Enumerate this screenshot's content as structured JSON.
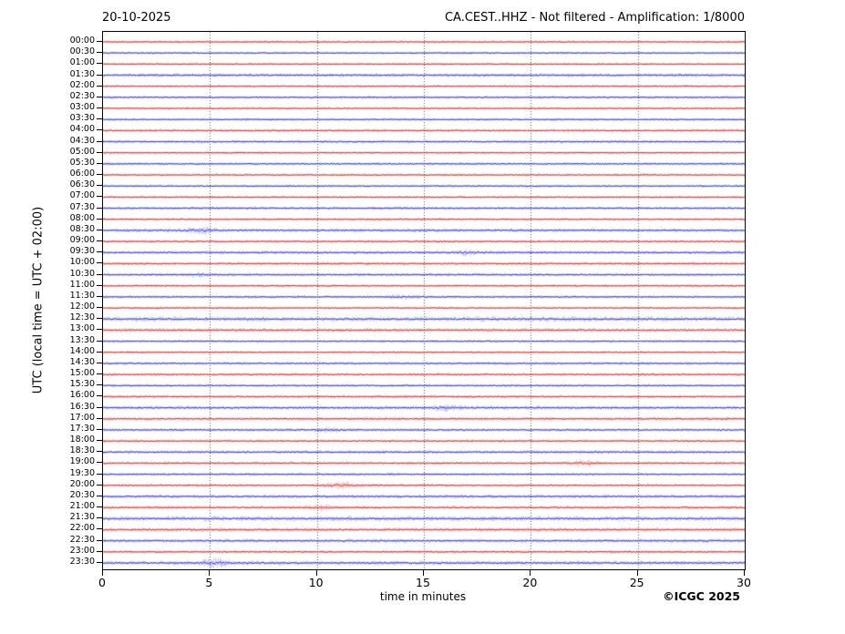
{
  "header": {
    "date_label": "20-10-2025",
    "station_label": "CA.CEST..HHZ - Not filtered - Amplification: 1/8000"
  },
  "footer": {
    "credit": "©ICGC 2025"
  },
  "chart_data": {
    "type": "line",
    "subtype": "helicorder-seismogram",
    "title_left": "20-10-2025",
    "title_right": "CA.CEST..HHZ - Not filtered - Amplification: 1/8000",
    "xlabel": "time in minutes",
    "ylabel": "UTC (local time = UTC + 02:00)",
    "xlim": [
      0,
      30
    ],
    "x_ticks": [
      0,
      5,
      10,
      15,
      20,
      25,
      30
    ],
    "grid": "vertical dotted lines at 5-minute intervals",
    "legend_position": "none",
    "trace_color_cycle": {
      "hour": "#dc2828",
      "half_hour": "#3232d2"
    },
    "grid_color": "#555555",
    "rows": [
      {
        "label": "00:00",
        "color": "red",
        "amp": 1.0,
        "bursts": []
      },
      {
        "label": "00:30",
        "color": "blue",
        "amp": 1.0,
        "bursts": []
      },
      {
        "label": "01:00",
        "color": "red",
        "amp": 1.0,
        "bursts": []
      },
      {
        "label": "01:30",
        "color": "blue",
        "amp": 1.4,
        "bursts": []
      },
      {
        "label": "02:00",
        "color": "red",
        "amp": 1.0,
        "bursts": []
      },
      {
        "label": "02:30",
        "color": "blue",
        "amp": 1.1,
        "bursts": []
      },
      {
        "label": "03:00",
        "color": "red",
        "amp": 1.0,
        "bursts": []
      },
      {
        "label": "03:30",
        "color": "blue",
        "amp": 1.0,
        "bursts": []
      },
      {
        "label": "04:00",
        "color": "red",
        "amp": 1.2,
        "bursts": []
      },
      {
        "label": "04:30",
        "color": "blue",
        "amp": 1.2,
        "bursts": []
      },
      {
        "label": "05:00",
        "color": "red",
        "amp": 1.0,
        "bursts": []
      },
      {
        "label": "05:30",
        "color": "blue",
        "amp": 1.1,
        "bursts": []
      },
      {
        "label": "06:00",
        "color": "red",
        "amp": 1.0,
        "bursts": []
      },
      {
        "label": "06:30",
        "color": "blue",
        "amp": 1.0,
        "bursts": []
      },
      {
        "label": "07:00",
        "color": "red",
        "amp": 1.0,
        "bursts": []
      },
      {
        "label": "07:30",
        "color": "blue",
        "amp": 1.2,
        "bursts": []
      },
      {
        "label": "08:00",
        "color": "red",
        "amp": 1.1,
        "bursts": []
      },
      {
        "label": "08:30",
        "color": "blue",
        "amp": 1.4,
        "bursts": [
          {
            "m": 4.5,
            "w": 0.6,
            "gain": 1.4
          }
        ]
      },
      {
        "label": "09:00",
        "color": "red",
        "amp": 1.2,
        "bursts": []
      },
      {
        "label": "09:30",
        "color": "blue",
        "amp": 1.3,
        "bursts": [
          {
            "m": 17.0,
            "w": 0.5,
            "gain": 1.0
          }
        ]
      },
      {
        "label": "10:00",
        "color": "red",
        "amp": 1.3,
        "bursts": []
      },
      {
        "label": "10:30",
        "color": "blue",
        "amp": 1.2,
        "bursts": [
          {
            "m": 4.5,
            "w": 0.5,
            "gain": 0.8
          }
        ]
      },
      {
        "label": "11:00",
        "color": "red",
        "amp": 1.1,
        "bursts": []
      },
      {
        "label": "11:30",
        "color": "blue",
        "amp": 1.1,
        "bursts": [
          {
            "m": 14.0,
            "w": 0.8,
            "gain": 0.8
          }
        ]
      },
      {
        "label": "12:00",
        "color": "red",
        "amp": 1.0,
        "bursts": []
      },
      {
        "label": "12:30",
        "color": "blue",
        "amp": 1.8,
        "bursts": []
      },
      {
        "label": "13:00",
        "color": "red",
        "amp": 1.5,
        "bursts": []
      },
      {
        "label": "13:30",
        "color": "blue",
        "amp": 1.1,
        "bursts": []
      },
      {
        "label": "14:00",
        "color": "red",
        "amp": 1.0,
        "bursts": []
      },
      {
        "label": "14:30",
        "color": "blue",
        "amp": 1.2,
        "bursts": []
      },
      {
        "label": "15:00",
        "color": "red",
        "amp": 1.2,
        "bursts": []
      },
      {
        "label": "15:30",
        "color": "blue",
        "amp": 1.1,
        "bursts": []
      },
      {
        "label": "16:00",
        "color": "red",
        "amp": 1.2,
        "bursts": []
      },
      {
        "label": "16:30",
        "color": "blue",
        "amp": 1.4,
        "bursts": [
          {
            "m": 16.0,
            "w": 0.6,
            "gain": 1.0
          }
        ]
      },
      {
        "label": "17:00",
        "color": "red",
        "amp": 1.3,
        "bursts": []
      },
      {
        "label": "17:30",
        "color": "blue",
        "amp": 1.2,
        "bursts": [
          {
            "m": 10.5,
            "w": 0.8,
            "gain": 0.8
          }
        ]
      },
      {
        "label": "18:00",
        "color": "red",
        "amp": 1.2,
        "bursts": []
      },
      {
        "label": "18:30",
        "color": "blue",
        "amp": 1.3,
        "bursts": []
      },
      {
        "label": "19:00",
        "color": "red",
        "amp": 1.3,
        "bursts": [
          {
            "m": 22.5,
            "w": 0.6,
            "gain": 1.2
          }
        ]
      },
      {
        "label": "19:30",
        "color": "blue",
        "amp": 1.1,
        "bursts": []
      },
      {
        "label": "20:00",
        "color": "red",
        "amp": 1.2,
        "bursts": [
          {
            "m": 11.0,
            "w": 0.8,
            "gain": 1.5
          }
        ]
      },
      {
        "label": "20:30",
        "color": "blue",
        "amp": 1.4,
        "bursts": []
      },
      {
        "label": "21:00",
        "color": "red",
        "amp": 1.3,
        "bursts": [
          {
            "m": 10.2,
            "w": 0.5,
            "gain": 1.2
          }
        ]
      },
      {
        "label": "21:30",
        "color": "blue",
        "amp": 1.8,
        "bursts": []
      },
      {
        "label": "22:00",
        "color": "red",
        "amp": 1.5,
        "bursts": []
      },
      {
        "label": "22:30",
        "color": "blue",
        "amp": 1.5,
        "bursts": []
      },
      {
        "label": "23:00",
        "color": "red",
        "amp": 1.2,
        "bursts": []
      },
      {
        "label": "23:30",
        "color": "blue",
        "amp": 1.6,
        "bursts": [
          {
            "m": 5.2,
            "w": 0.6,
            "gain": 1.4
          }
        ]
      }
    ]
  }
}
